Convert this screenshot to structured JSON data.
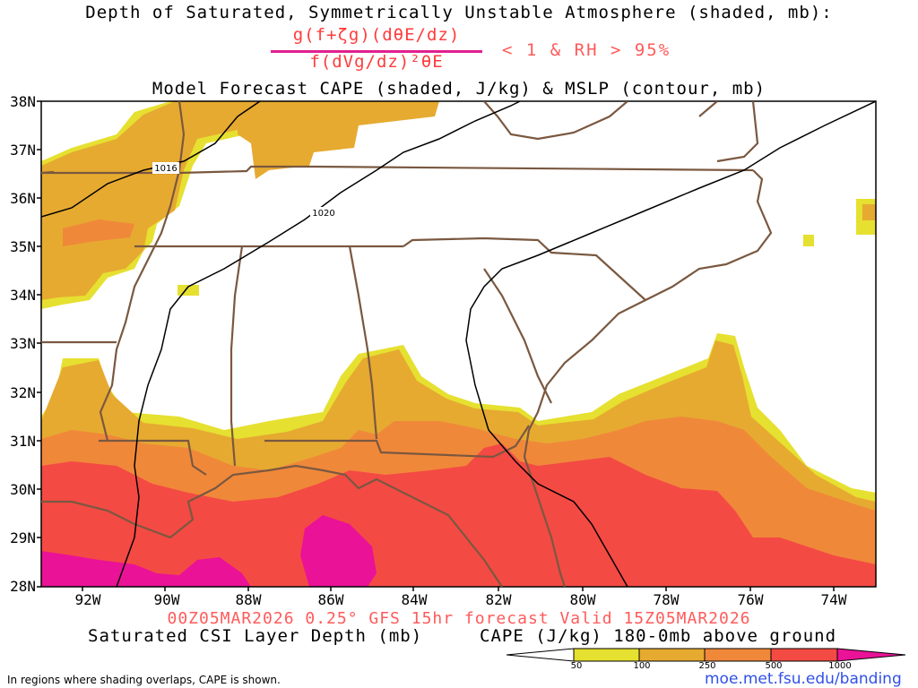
{
  "header": {
    "title_line1": "Depth of Saturated, Symmetrically Unstable Atmosphere (shaded, mb):",
    "formula_numerator": "g(f+ζg)(dθE/dz)",
    "formula_denominator": "f(dVg/dz)²θE",
    "formula_condition": "< 1 & RH > 95%",
    "title_line3": "Model Forecast CAPE (shaded, J/kg) & MSLP (contour, mb)"
  },
  "map": {
    "lat_labels": [
      "38N",
      "37N",
      "36N",
      "35N",
      "34N",
      "33N",
      "32N",
      "31N",
      "30N",
      "29N",
      "28N"
    ],
    "lon_labels": [
      "92W",
      "90W",
      "88W",
      "86W",
      "84W",
      "82W",
      "80W",
      "78W",
      "76W",
      "74W"
    ],
    "isobar_labels": [
      "1016",
      "1020"
    ],
    "colors": {
      "border": "#7a5840",
      "isobar": "#000000",
      "cape_50": "#e6e030",
      "cape_100": "#e6aa30",
      "cape_250": "#f0883a",
      "cape_500": "#f44a44",
      "cape_1000": "#ea1297"
    }
  },
  "footer": {
    "valid_line": "00Z05MAR2026 0.25° GFS 15hr forecast Valid 15Z05MAR2026",
    "legend_left": "Saturated CSI Layer Depth (mb)",
    "legend_right": "CAPE (J/kg) 180-0mb above ground",
    "colorbar_labels": [
      "50",
      "100",
      "250",
      "500",
      "1000"
    ],
    "note": "In regions where shading overlaps, CAPE is shown.",
    "url": "moe.met.fsu.edu/banding"
  }
}
